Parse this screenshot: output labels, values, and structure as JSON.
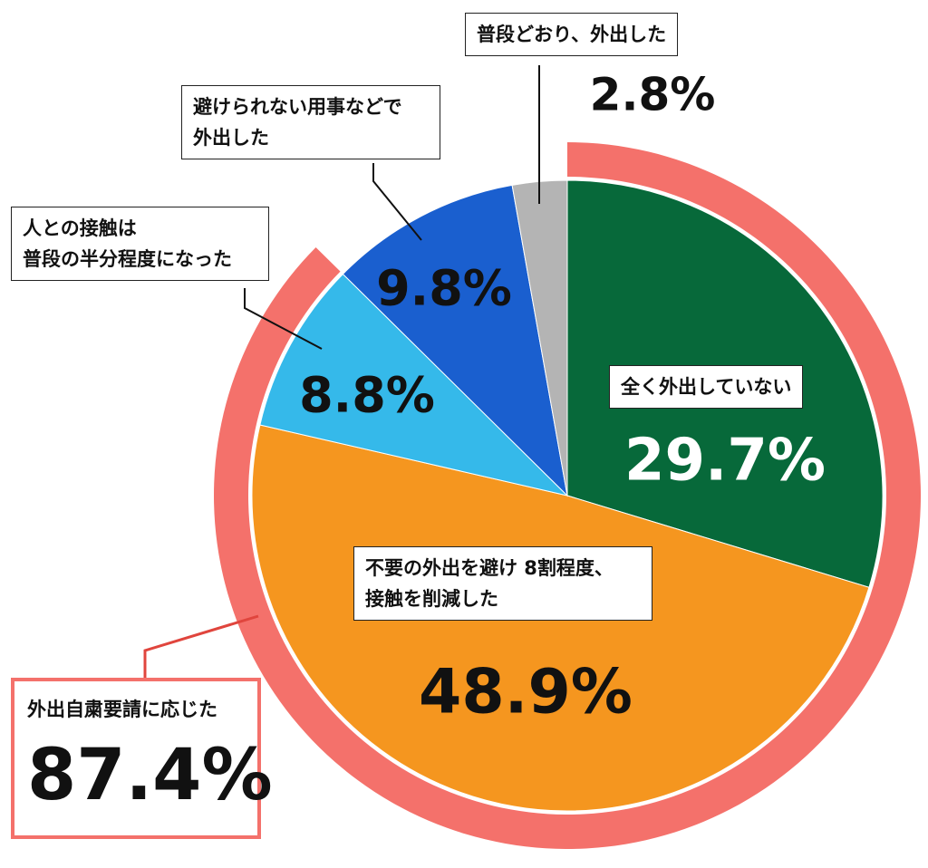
{
  "chart_data": {
    "type": "pie",
    "categories": [
      "全く外出していない",
      "不要の外出を避け 8割程度、\n接触を削減した",
      "人との接触は\n普段の半分程度になった",
      "避けられない用事などで\n外出した",
      "普段どおり、外出した"
    ],
    "values": [
      29.7,
      48.9,
      8.8,
      9.8,
      2.8
    ],
    "value_labels": [
      "29.7%",
      "48.9%",
      "8.8%",
      "9.8%",
      "2.8%"
    ],
    "colors": [
      "#07693a",
      "#f5961f",
      "#35b9ea",
      "#1a5fcf",
      "#b4b4b4"
    ],
    "ring": {
      "name": "外出自粛要請に応じた",
      "value": 87.4,
      "value_label": "87.4%",
      "color": "#f4716b"
    }
  }
}
